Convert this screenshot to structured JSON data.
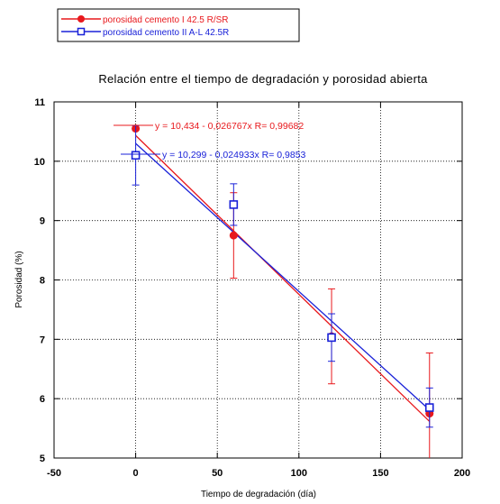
{
  "chart_data": {
    "type": "scatter",
    "title": "Relación entre el tiempo de degradación y porosidad abierta",
    "xlabel": "Tiempo de degradación (día)",
    "ylabel": "Porosidad (%)",
    "xlim": [
      -50,
      200
    ],
    "ylim": [
      5,
      11
    ],
    "xticks": [
      "-50",
      "0",
      "50",
      "100",
      "150",
      "200"
    ],
    "yticks": [
      "5",
      "6",
      "7",
      "8",
      "9",
      "10",
      "11"
    ],
    "grid": true,
    "legend_position": "top-left, outside plot",
    "series": [
      {
        "name": "porosidad cemento I 42.5 R/SR",
        "color": "#e8181c",
        "marker": "circle",
        "x": [
          0,
          60,
          120,
          180
        ],
        "y": [
          10.55,
          8.75,
          7.05,
          5.75
        ],
        "err": [
          0.0,
          0.72,
          0.8,
          1.02
        ],
        "fit": {
          "intercept": 10.434,
          "slope": -0.026767,
          "label": "y = 10,434 - 0,026767x   R= 0,99682"
        }
      },
      {
        "name": "porosidad cemento II A-L 42.5R",
        "color": "#1a22d8",
        "marker": "square",
        "x": [
          0,
          60,
          120,
          180
        ],
        "y": [
          10.1,
          9.27,
          7.03,
          5.85
        ],
        "err": [
          0.5,
          0.35,
          0.4,
          0.33
        ],
        "fit": {
          "intercept": 10.299,
          "slope": -0.024933,
          "label": "y = 10,299 - 0,024933x   R= 0,9853"
        }
      }
    ]
  }
}
